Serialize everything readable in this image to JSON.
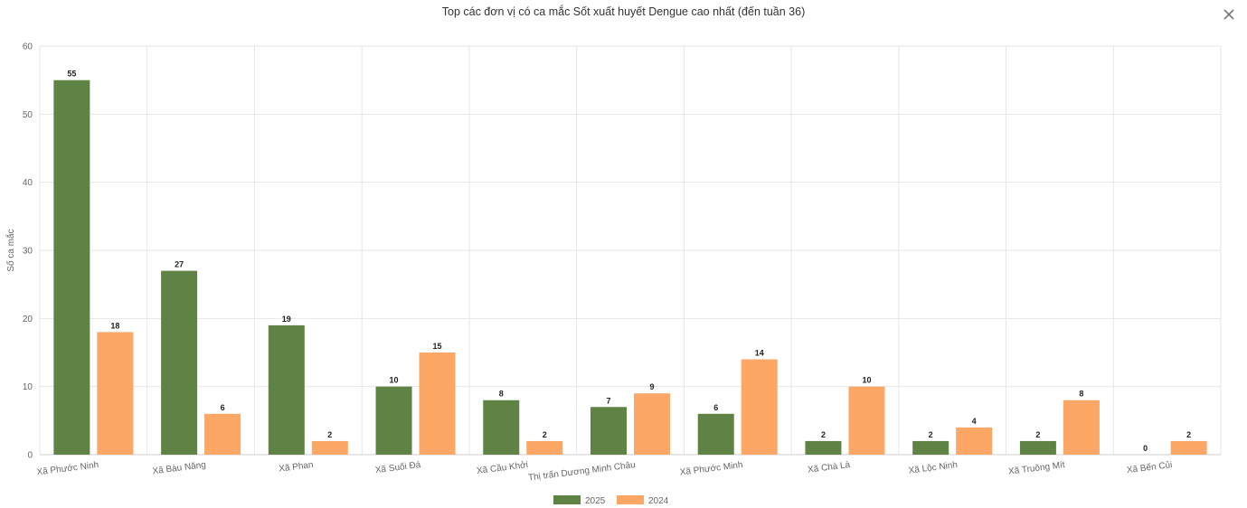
{
  "page": {
    "close_icon": "close-icon"
  },
  "chart_data": {
    "type": "bar",
    "title": "Top các đơn vị có ca mắc Sốt xuất huyết Dengue cao nhất (đến tuần 36)",
    "xlabel": "",
    "ylabel": "Số ca mắc",
    "ylim": [
      0,
      60
    ],
    "yticks": [
      0,
      10,
      20,
      30,
      40,
      50,
      60
    ],
    "grid": true,
    "legend_position": "bottom",
    "data_labels": true,
    "categories": [
      "Xã Phước Ninh",
      "Xã Bàu Năng",
      "Xã Phan",
      "Xã Suối Đá",
      "Xã Cầu Khởi",
      "Thị trấn Dương Minh Châu",
      "Xã Phước Minh",
      "Xã Chà Là",
      "Xã Lộc Ninh",
      "Xã Truông Mít",
      "Xã Bến Củi"
    ],
    "series": [
      {
        "name": "2025",
        "color": "#5f8344",
        "values": [
          55,
          27,
          19,
          10,
          8,
          7,
          6,
          2,
          2,
          2,
          0
        ]
      },
      {
        "name": "2024",
        "color": "#fca766",
        "values": [
          18,
          6,
          2,
          15,
          2,
          9,
          14,
          10,
          4,
          8,
          2
        ]
      }
    ]
  }
}
